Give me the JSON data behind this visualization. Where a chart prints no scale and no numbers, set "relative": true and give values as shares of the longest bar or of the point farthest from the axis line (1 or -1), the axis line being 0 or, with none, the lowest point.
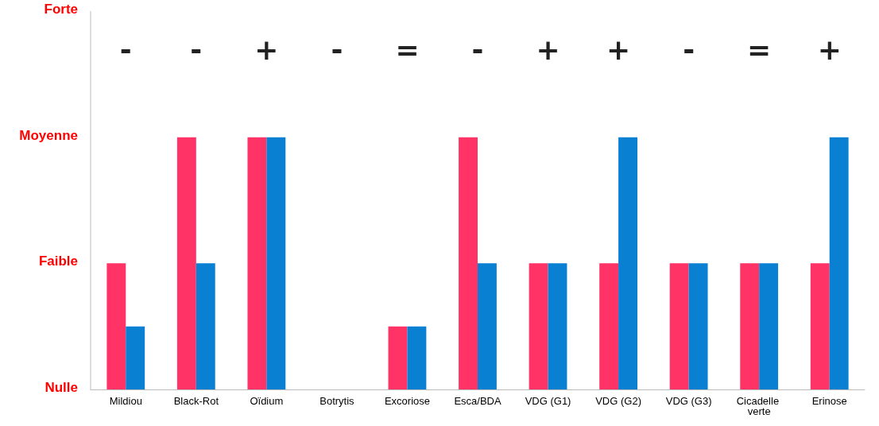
{
  "chart_data": {
    "type": "bar",
    "relative": true,
    "categories": [
      "Mildiou",
      "Black-Rot",
      "Oïdium",
      "Botrytis",
      "Excoriose",
      "Esca/BDA",
      "VDG (G1)",
      "VDG (G2)",
      "VDG (G3)",
      "Cicadelle verte",
      "Erinose"
    ],
    "series": [
      {
        "color": "#ff3366",
        "values": [
          0.5,
          1,
          1,
          0,
          0.25,
          1,
          0.5,
          0.5,
          0.5,
          0.5,
          0.5
        ]
      },
      {
        "color": "#0a80d2",
        "values": [
          0.25,
          0.5,
          1,
          0,
          0.25,
          0.5,
          0.5,
          1,
          0.5,
          0.5,
          1
        ]
      }
    ],
    "annotations": [
      "Nulle",
      "Faible",
      "Moyenne",
      "Forte",
      "-",
      "-",
      "+",
      "-",
      "=",
      "-",
      "+",
      "+",
      "-",
      "=",
      "+"
    ]
  }
}
